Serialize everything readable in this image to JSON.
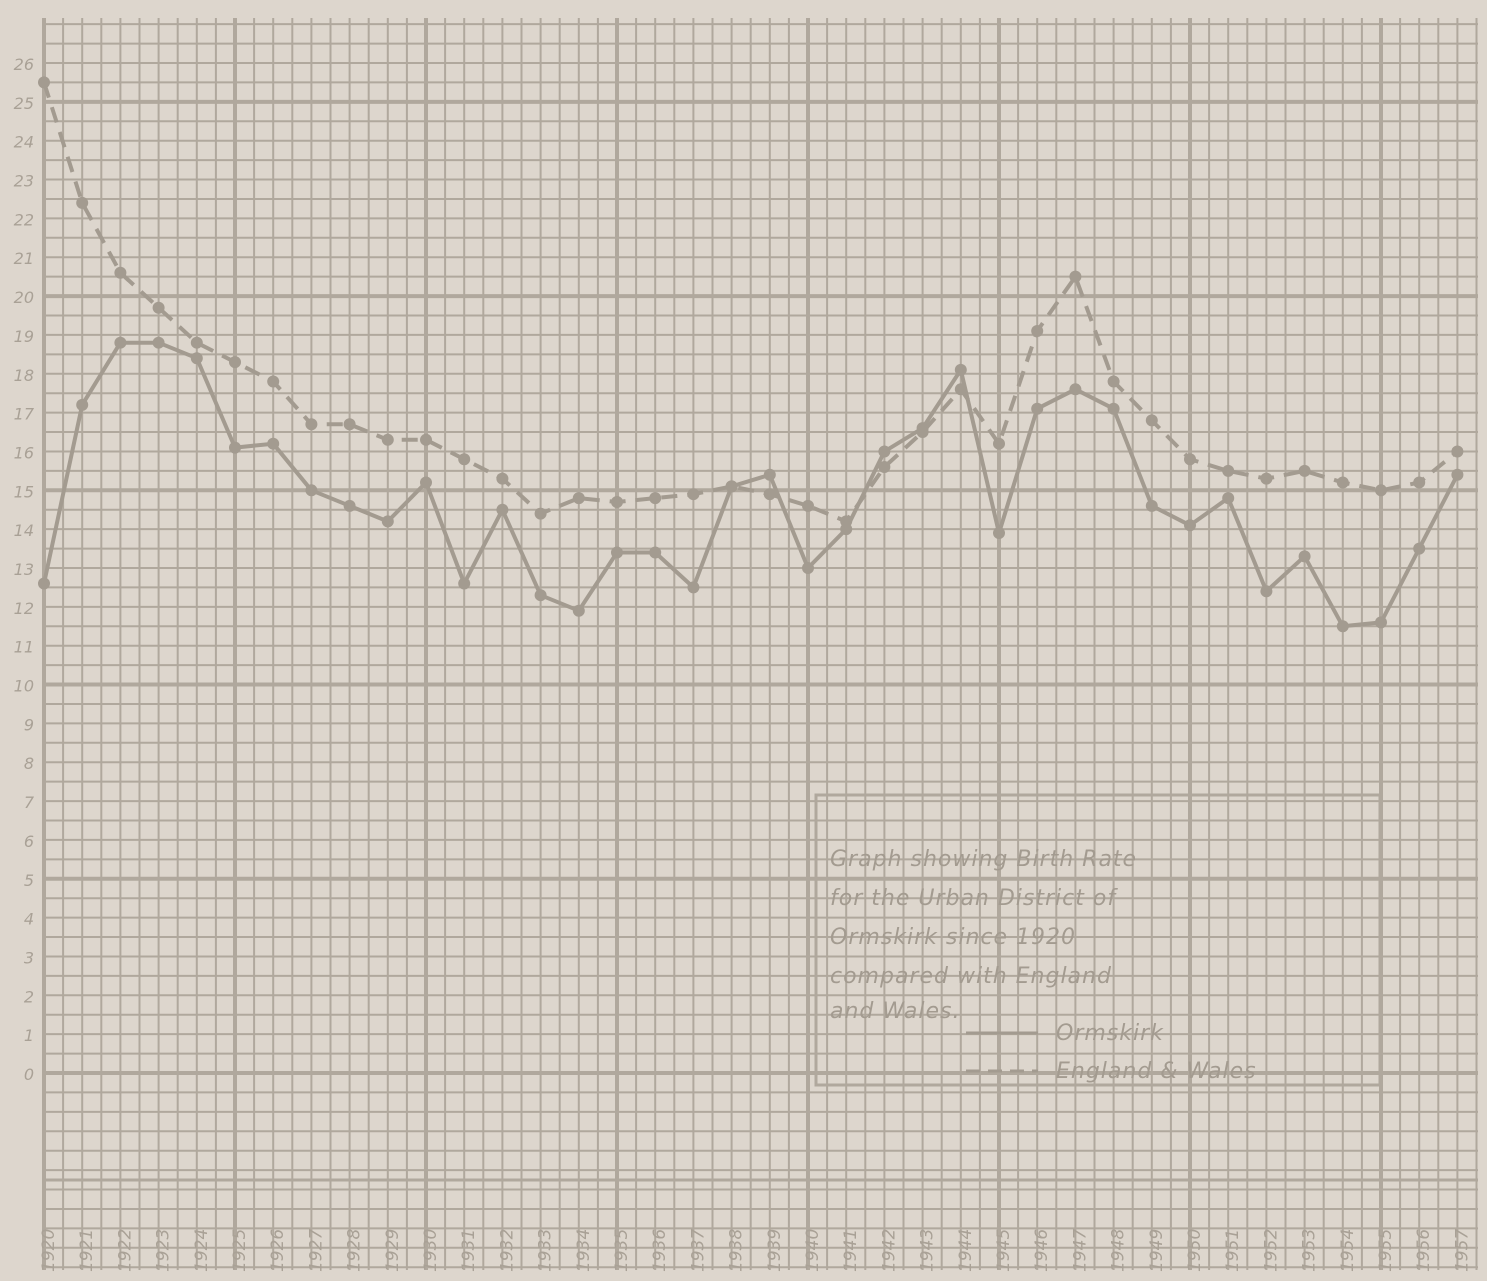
{
  "chart_data": {
    "type": "line",
    "title_lines": [
      "Graph showing Birth Rate",
      "for the Urban District of",
      "Ormskirk since 1920",
      "compared with England",
      "and Wales."
    ],
    "legend": [
      {
        "label": "Ormskirk",
        "style": "solid"
      },
      {
        "label": "England & Wales",
        "style": "dashed"
      }
    ],
    "y_ticks": [
      "0",
      "1",
      "2",
      "3",
      "4",
      "5",
      "6",
      "7",
      "8",
      "9",
      "10",
      "11",
      "12",
      "13",
      "14",
      "15",
      "16",
      "17",
      "18",
      "19",
      "20",
      "21",
      "22",
      "23",
      "24",
      "25",
      "26"
    ],
    "x_ticks": [
      "1920",
      "1921",
      "1922",
      "1923",
      "1924",
      "1925",
      "1926",
      "1927",
      "1928",
      "1929",
      "1930",
      "1931",
      "1932",
      "1933",
      "1934",
      "1935",
      "1936",
      "1937",
      "1938",
      "1939",
      "1940",
      "1941",
      "1942",
      "1943",
      "1944",
      "1945",
      "1946",
      "1947",
      "1948",
      "1949",
      "1950",
      "1951",
      "1952",
      "1953",
      "1954",
      "1955",
      "1956",
      "1957"
    ],
    "ylim": [
      0,
      26
    ],
    "xlim": [
      1920,
      1957
    ],
    "grid": true,
    "x": [
      1920,
      1921,
      1922,
      1923,
      1924,
      1925,
      1926,
      1927,
      1928,
      1929,
      1930,
      1931,
      1932,
      1933,
      1934,
      1935,
      1936,
      1937,
      1938,
      1939,
      1940,
      1941,
      1942,
      1943,
      1944,
      1945,
      1946,
      1947,
      1948,
      1949,
      1950,
      1951,
      1952,
      1953,
      1954,
      1955,
      1956,
      1957
    ],
    "series": [
      {
        "name": "Ormskirk",
        "style": "solid",
        "values": [
          12.6,
          17.2,
          18.8,
          18.8,
          18.4,
          16.1,
          16.2,
          15.0,
          14.6,
          14.2,
          15.2,
          12.6,
          14.5,
          12.3,
          11.9,
          13.4,
          13.4,
          12.5,
          15.1,
          15.4,
          13.0,
          14.0,
          16.0,
          16.6,
          18.1,
          13.9,
          17.1,
          17.6,
          17.1,
          14.6,
          14.1,
          14.8,
          12.4,
          13.3,
          11.5,
          11.6,
          13.5,
          15.4
        ]
      },
      {
        "name": "England & Wales",
        "style": "dashed",
        "values": [
          25.5,
          22.4,
          20.6,
          19.7,
          18.8,
          18.3,
          17.8,
          16.7,
          16.7,
          16.3,
          16.3,
          15.8,
          15.3,
          14.4,
          14.8,
          14.7,
          14.8,
          14.9,
          15.1,
          14.9,
          14.6,
          14.2,
          15.6,
          16.5,
          17.6,
          16.2,
          19.1,
          20.5,
          17.8,
          16.8,
          15.8,
          15.5,
          15.3,
          15.5,
          15.2,
          15.0,
          15.2,
          16.0
        ]
      }
    ]
  }
}
